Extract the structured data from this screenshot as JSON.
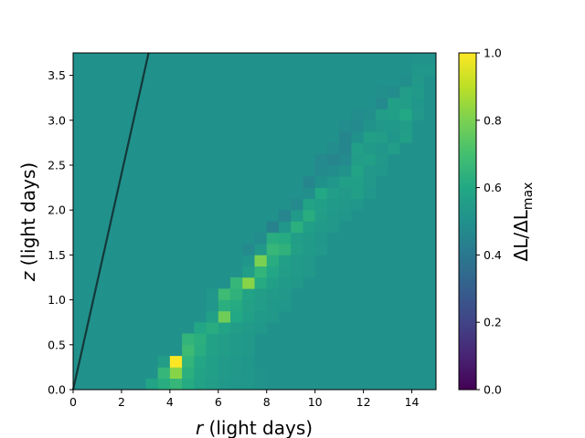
{
  "chart_data": {
    "type": "heatmap",
    "xlabel_var": "r",
    "xlabel_unit": " (light days)",
    "ylabel_var": "z",
    "ylabel_unit": " (light days)",
    "colorbar_label": "ΔL/ΔL",
    "colorbar_label_sub": "max",
    "xlim": [
      0,
      15
    ],
    "ylim": [
      0,
      3.75
    ],
    "x_ticks": [
      "0",
      "2",
      "4",
      "6",
      "8",
      "10",
      "12",
      "14"
    ],
    "y_ticks": [
      "0.0",
      "0.5",
      "1.0",
      "1.5",
      "2.0",
      "2.5",
      "3.0",
      "3.5"
    ],
    "colorbar_range": [
      0,
      1
    ],
    "colorbar_ticks": [
      "0.0",
      "0.2",
      "0.4",
      "0.6",
      "0.8",
      "1.0"
    ],
    "colormap": "viridis",
    "background_value": 0.5,
    "grid": false,
    "cell_size_x": 0.5,
    "cell_size_y": 0.125,
    "cells": [
      [
        3.25,
        0.0625,
        0.58
      ],
      [
        3.75,
        0.0625,
        0.62
      ],
      [
        4.25,
        0.0625,
        0.66
      ],
      [
        4.75,
        0.0625,
        0.61
      ],
      [
        5.25,
        0.0625,
        0.57
      ],
      [
        5.75,
        0.0625,
        0.55
      ],
      [
        6.25,
        0.0625,
        0.53
      ],
      [
        6.75,
        0.0625,
        0.52
      ],
      [
        7.25,
        0.0625,
        0.52
      ],
      [
        7.75,
        0.0625,
        0.51
      ],
      [
        3.75,
        0.1875,
        0.66
      ],
      [
        4.25,
        0.1875,
        0.82
      ],
      [
        4.75,
        0.1875,
        0.63
      ],
      [
        5.25,
        0.1875,
        0.58
      ],
      [
        5.75,
        0.1875,
        0.56
      ],
      [
        6.25,
        0.1875,
        0.54
      ],
      [
        6.75,
        0.1875,
        0.53
      ],
      [
        7.25,
        0.1875,
        0.52
      ],
      [
        7.75,
        0.1875,
        0.51
      ],
      [
        3.75,
        0.3125,
        0.55
      ],
      [
        4.25,
        0.3125,
        1.0
      ],
      [
        4.75,
        0.3125,
        0.65
      ],
      [
        5.25,
        0.3125,
        0.59
      ],
      [
        5.75,
        0.3125,
        0.56
      ],
      [
        6.25,
        0.3125,
        0.54
      ],
      [
        6.75,
        0.3125,
        0.53
      ],
      [
        7.25,
        0.3125,
        0.52
      ],
      [
        4.75,
        0.4375,
        0.68
      ],
      [
        5.25,
        0.4375,
        0.62
      ],
      [
        5.75,
        0.4375,
        0.57
      ],
      [
        6.25,
        0.4375,
        0.55
      ],
      [
        6.75,
        0.4375,
        0.54
      ],
      [
        7.25,
        0.4375,
        0.53
      ],
      [
        4.75,
        0.5625,
        0.65
      ],
      [
        5.25,
        0.5625,
        0.63
      ],
      [
        5.75,
        0.5625,
        0.57
      ],
      [
        6.25,
        0.5625,
        0.55
      ],
      [
        6.75,
        0.5625,
        0.54
      ],
      [
        7.25,
        0.5625,
        0.53
      ],
      [
        5.25,
        0.6875,
        0.59
      ],
      [
        5.75,
        0.6875,
        0.62
      ],
      [
        6.25,
        0.6875,
        0.58
      ],
      [
        6.75,
        0.6875,
        0.55
      ],
      [
        7.25,
        0.6875,
        0.54
      ],
      [
        7.75,
        0.6875,
        0.53
      ],
      [
        5.75,
        0.8125,
        0.56
      ],
      [
        6.25,
        0.8125,
        0.78
      ],
      [
        6.75,
        0.8125,
        0.6
      ],
      [
        7.25,
        0.8125,
        0.56
      ],
      [
        7.75,
        0.8125,
        0.54
      ],
      [
        8.25,
        0.8125,
        0.53
      ],
      [
        5.75,
        0.9375,
        0.52
      ],
      [
        6.25,
        0.9375,
        0.63
      ],
      [
        6.75,
        0.9375,
        0.61
      ],
      [
        7.25,
        0.9375,
        0.57
      ],
      [
        7.75,
        0.9375,
        0.55
      ],
      [
        8.25,
        0.9375,
        0.53
      ],
      [
        8.75,
        0.9375,
        0.52
      ],
      [
        5.75,
        1.0625,
        0.52
      ],
      [
        6.25,
        1.0625,
        0.68
      ],
      [
        6.75,
        1.0625,
        0.64
      ],
      [
        7.25,
        1.0625,
        0.58
      ],
      [
        7.75,
        1.0625,
        0.55
      ],
      [
        8.25,
        1.0625,
        0.54
      ],
      [
        8.75,
        1.0625,
        0.53
      ],
      [
        6.75,
        1.1875,
        0.66
      ],
      [
        7.25,
        1.1875,
        0.82
      ],
      [
        7.75,
        1.1875,
        0.61
      ],
      [
        8.25,
        1.1875,
        0.56
      ],
      [
        8.75,
        1.1875,
        0.54
      ],
      [
        9.25,
        1.1875,
        0.53
      ],
      [
        7.25,
        1.3125,
        0.55
      ],
      [
        7.75,
        1.3125,
        0.65
      ],
      [
        8.25,
        1.3125,
        0.59
      ],
      [
        8.75,
        1.3125,
        0.55
      ],
      [
        9.25,
        1.3125,
        0.54
      ],
      [
        9.75,
        1.3125,
        0.53
      ],
      [
        7.25,
        1.4375,
        0.52
      ],
      [
        7.75,
        1.4375,
        0.8
      ],
      [
        8.25,
        1.4375,
        0.62
      ],
      [
        8.75,
        1.4375,
        0.56
      ],
      [
        9.25,
        1.4375,
        0.54
      ],
      [
        9.75,
        1.4375,
        0.53
      ],
      [
        7.25,
        1.5625,
        0.47
      ],
      [
        7.75,
        1.5625,
        0.53
      ],
      [
        8.25,
        1.5625,
        0.66
      ],
      [
        8.75,
        1.5625,
        0.64
      ],
      [
        9.25,
        1.5625,
        0.56
      ],
      [
        9.75,
        1.5625,
        0.54
      ],
      [
        10.25,
        1.5625,
        0.53
      ],
      [
        7.75,
        1.6875,
        0.48
      ],
      [
        8.25,
        1.6875,
        0.62
      ],
      [
        8.75,
        1.6875,
        0.61
      ],
      [
        9.25,
        1.6875,
        0.55
      ],
      [
        9.75,
        1.6875,
        0.54
      ],
      [
        10.25,
        1.6875,
        0.52
      ],
      [
        8.25,
        1.8125,
        0.44
      ],
      [
        8.75,
        1.8125,
        0.52
      ],
      [
        9.25,
        1.8125,
        0.63
      ],
      [
        9.75,
        1.8125,
        0.56
      ],
      [
        10.25,
        1.8125,
        0.54
      ],
      [
        10.75,
        1.8125,
        0.53
      ],
      [
        8.75,
        1.9375,
        0.45
      ],
      [
        9.25,
        1.9375,
        0.54
      ],
      [
        9.75,
        1.9375,
        0.62
      ],
      [
        10.25,
        1.9375,
        0.55
      ],
      [
        10.75,
        1.9375,
        0.53
      ],
      [
        11.25,
        1.9375,
        0.52
      ],
      [
        9.25,
        2.0625,
        0.47
      ],
      [
        9.75,
        2.0625,
        0.58
      ],
      [
        10.25,
        2.0625,
        0.56
      ],
      [
        10.75,
        2.0625,
        0.54
      ],
      [
        11.25,
        2.0625,
        0.53
      ],
      [
        11.75,
        2.0625,
        0.52
      ],
      [
        9.75,
        2.1875,
        0.49
      ],
      [
        10.25,
        2.1875,
        0.6
      ],
      [
        10.75,
        2.1875,
        0.55
      ],
      [
        11.25,
        2.1875,
        0.54
      ],
      [
        11.75,
        2.1875,
        0.56
      ],
      [
        12.25,
        2.1875,
        0.52
      ],
      [
        9.75,
        2.3125,
        0.46
      ],
      [
        10.25,
        2.3125,
        0.5
      ],
      [
        10.75,
        2.3125,
        0.52
      ],
      [
        11.25,
        2.3125,
        0.56
      ],
      [
        11.75,
        2.3125,
        0.56
      ],
      [
        12.25,
        2.3125,
        0.53
      ],
      [
        10.25,
        2.4375,
        0.47
      ],
      [
        10.75,
        2.4375,
        0.48
      ],
      [
        11.25,
        2.4375,
        0.51
      ],
      [
        11.75,
        2.4375,
        0.58
      ],
      [
        12.25,
        2.4375,
        0.53
      ],
      [
        12.75,
        2.4375,
        0.52
      ],
      [
        10.25,
        2.5625,
        0.47
      ],
      [
        10.75,
        2.5625,
        0.45
      ],
      [
        11.25,
        2.5625,
        0.47
      ],
      [
        11.75,
        2.5625,
        0.55
      ],
      [
        12.25,
        2.5625,
        0.56
      ],
      [
        12.75,
        2.5625,
        0.53
      ],
      [
        10.75,
        2.6875,
        0.48
      ],
      [
        11.25,
        2.6875,
        0.46
      ],
      [
        11.75,
        2.6875,
        0.56
      ],
      [
        12.25,
        2.6875,
        0.54
      ],
      [
        12.75,
        2.6875,
        0.52
      ],
      [
        13.25,
        2.6875,
        0.55
      ],
      [
        11.25,
        2.8125,
        0.46
      ],
      [
        11.75,
        2.8125,
        0.5
      ],
      [
        12.25,
        2.8125,
        0.56
      ],
      [
        12.75,
        2.8125,
        0.55
      ],
      [
        13.25,
        2.8125,
        0.52
      ],
      [
        13.75,
        2.8125,
        0.56
      ],
      [
        11.25,
        2.9375,
        0.48
      ],
      [
        11.75,
        2.9375,
        0.47
      ],
      [
        12.25,
        2.9375,
        0.51
      ],
      [
        12.75,
        2.9375,
        0.53
      ],
      [
        13.25,
        2.9375,
        0.53
      ],
      [
        13.75,
        2.9375,
        0.55
      ],
      [
        11.75,
        3.0625,
        0.48
      ],
      [
        12.25,
        3.0625,
        0.49
      ],
      [
        12.75,
        3.0625,
        0.55
      ],
      [
        13.25,
        3.0625,
        0.56
      ],
      [
        13.75,
        3.0625,
        0.6
      ],
      [
        14.25,
        3.0625,
        0.53
      ],
      [
        12.25,
        3.1875,
        0.5
      ],
      [
        12.75,
        3.1875,
        0.47
      ],
      [
        13.25,
        3.1875,
        0.56
      ],
      [
        13.75,
        3.1875,
        0.55
      ],
      [
        14.25,
        3.1875,
        0.52
      ],
      [
        12.75,
        3.3125,
        0.49
      ],
      [
        13.25,
        3.3125,
        0.48
      ],
      [
        13.75,
        3.3125,
        0.55
      ],
      [
        14.25,
        3.3125,
        0.54
      ],
      [
        13.25,
        3.4375,
        0.5
      ],
      [
        13.75,
        3.4375,
        0.49
      ],
      [
        14.25,
        3.4375,
        0.53
      ],
      [
        13.75,
        3.5625,
        0.5
      ],
      [
        14.25,
        3.5625,
        0.52
      ],
      [
        14.75,
        3.5625,
        0.52
      ],
      [
        14.25,
        3.6875,
        0.51
      ],
      [
        14.75,
        3.6875,
        0.51
      ]
    ],
    "line": {
      "x": [
        0,
        3.12
      ],
      "y": [
        0,
        3.75
      ],
      "color": "#143838"
    }
  }
}
